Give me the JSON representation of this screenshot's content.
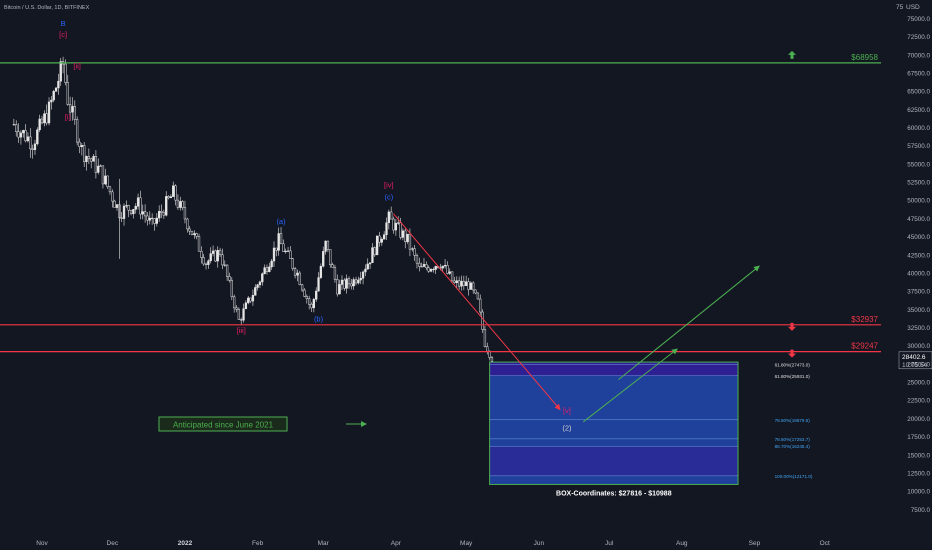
{
  "header": {
    "symbol_title": "Bitcoin / U.S. Dollar, 1D, BITFINEX",
    "currency": "USD",
    "corner_value": "75"
  },
  "colors": {
    "background": "#131722",
    "candle": "#e6e6e6",
    "green": "#4caf50",
    "red": "#f23645",
    "box_fill": "#2962ff",
    "box_dark": "#311b92",
    "box_border": "#4caf50",
    "wave_blue": "#2962ff",
    "wave_red": "#e91e63",
    "fib_text": "#42a5f5"
  },
  "chart_data": {
    "type": "candlestick",
    "x_ticks": [
      "Nov",
      "Dec",
      "2022",
      "Feb",
      "Mar",
      "Apr",
      "May",
      "Jun",
      "Jul",
      "Aug",
      "Sep",
      "Oct"
    ],
    "y_ticks": [
      "75000.0",
      "72500.0",
      "70000.0",
      "67500.0",
      "65000.0",
      "62500.0",
      "60000.0",
      "57500.0",
      "55000.0",
      "52500.0",
      "50000.0",
      "47500.0",
      "45000.0",
      "42500.0",
      "40000.0",
      "37500.0",
      "35000.0",
      "32500.0",
      "30000.0",
      "27500.0",
      "25000.0",
      "22500.0",
      "20000.0",
      "17500.0",
      "15000.0",
      "12500.0",
      "10000.0",
      "7500.0"
    ],
    "y_range": [
      5000,
      76500
    ],
    "price_key_points": [
      {
        "date": "2021-10-20",
        "price": 60500
      },
      {
        "date": "2021-10-28",
        "price": 58000
      },
      {
        "date": "2021-11-04",
        "price": 62500
      },
      {
        "date": "2021-11-10",
        "price": 68800
      },
      {
        "date": "2021-11-12",
        "price": 64000
      },
      {
        "date": "2021-11-18",
        "price": 57000
      },
      {
        "date": "2021-11-26",
        "price": 54000
      },
      {
        "date": "2021-12-04",
        "price": 48500
      },
      {
        "date": "2021-12-12",
        "price": 49500
      },
      {
        "date": "2021-12-18",
        "price": 46500
      },
      {
        "date": "2021-12-27",
        "price": 51000
      },
      {
        "date": "2022-01-05",
        "price": 45000
      },
      {
        "date": "2022-01-10",
        "price": 41500
      },
      {
        "date": "2022-01-16",
        "price": 43000
      },
      {
        "date": "2022-01-24",
        "price": 33500
      },
      {
        "date": "2022-02-01",
        "price": 38500
      },
      {
        "date": "2022-02-10",
        "price": 44500
      },
      {
        "date": "2022-02-18",
        "price": 40000
      },
      {
        "date": "2022-02-24",
        "price": 35000
      },
      {
        "date": "2022-03-02",
        "price": 44000
      },
      {
        "date": "2022-03-07",
        "price": 38000
      },
      {
        "date": "2022-03-14",
        "price": 39000
      },
      {
        "date": "2022-03-20",
        "price": 41500
      },
      {
        "date": "2022-03-29",
        "price": 47500
      },
      {
        "date": "2022-04-06",
        "price": 44500
      },
      {
        "date": "2022-04-11",
        "price": 40500
      },
      {
        "date": "2022-04-20",
        "price": 41500
      },
      {
        "date": "2022-04-26",
        "price": 38500
      },
      {
        "date": "2022-05-02",
        "price": 38500
      },
      {
        "date": "2022-05-06",
        "price": 36000
      },
      {
        "date": "2022-05-09",
        "price": 30500
      },
      {
        "date": "2022-05-12",
        "price": 28400
      }
    ],
    "horizontal_levels": [
      {
        "label": "$68958",
        "price": 68958,
        "color": "#4caf50"
      },
      {
        "label": "$32937",
        "price": 32937,
        "color": "#f23645"
      },
      {
        "label": "$29247",
        "price": 29247,
        "color": "#f23645"
      }
    ],
    "current_price": {
      "value": "28402.6",
      "countdown": "10:05:54"
    },
    "box": {
      "label": "BOX-Coordinates: $27816 - $10988",
      "from_date": "2022-05-11",
      "to_date": "2022-08-25",
      "top": 27816,
      "bottom": 10988,
      "fib_levels": [
        {
          "label": "61.80%(27473.0)",
          "price": 27473
        },
        {
          "label": "61.80%(25931.0)",
          "price": 25931
        },
        {
          "label": "78.60%(19879.5)",
          "price": 19879.5
        },
        {
          "label": "78.60%(17253.7)",
          "price": 17253.7
        },
        {
          "label": "88.70%(16245.4)",
          "price": 16245.4
        },
        {
          "label": "100.00%(12171.0)",
          "price": 12171
        }
      ]
    },
    "wave_labels": [
      {
        "text": "B",
        "date": "2021-11-10",
        "price": 74000,
        "color": "#2962ff"
      },
      {
        "text": "[c]",
        "date": "2021-11-10",
        "price": 72500,
        "color": "#e91e63"
      },
      {
        "text": "[ii]",
        "date": "2021-11-16",
        "price": 68200,
        "color": "#e91e63"
      },
      {
        "text": "[i]",
        "date": "2021-11-12",
        "price": 61200,
        "color": "#e91e63"
      },
      {
        "text": "[iii]",
        "date": "2022-01-25",
        "price": 31800,
        "color": "#e91e63"
      },
      {
        "text": "(a)",
        "date": "2022-02-11",
        "price": 46800,
        "color": "#2962ff"
      },
      {
        "text": "(b)",
        "date": "2022-02-27",
        "price": 33400,
        "color": "#2962ff"
      },
      {
        "text": "[iv]",
        "date": "2022-03-29",
        "price": 51800,
        "color": "#e91e63"
      },
      {
        "text": "(c)",
        "date": "2022-03-29",
        "price": 50200,
        "color": "#2962ff"
      },
      {
        "text": "[v]",
        "date": "2022-06-13",
        "price": 20800,
        "color": "#e91e63"
      },
      {
        "text": "(2)",
        "date": "2022-06-13",
        "price": 18400,
        "color": "#cfcfcf"
      }
    ],
    "projection_arrows": [
      {
        "color": "#f23645",
        "from": {
          "date": "2022-03-31",
          "price": 48200
        },
        "to": {
          "date": "2022-06-10",
          "price": 21300
        }
      },
      {
        "color": "#4caf50",
        "from": {
          "date": "2022-06-20",
          "price": 19600
        },
        "to": {
          "date": "2022-07-30",
          "price": 29600
        }
      },
      {
        "color": "#4caf50",
        "from": {
          "date": "2022-07-05",
          "price": 25400
        },
        "to": {
          "date": "2022-09-03",
          "price": 41000
        }
      }
    ],
    "annotation": {
      "text": "Anticipated since June 2021"
    }
  }
}
